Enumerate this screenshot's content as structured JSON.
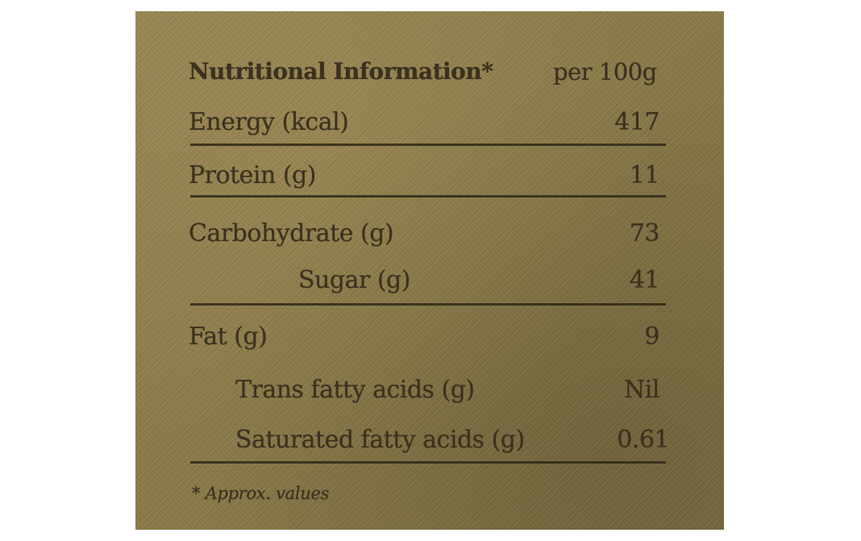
{
  "table": {
    "title": "Nutritional Information*",
    "unit": "per 100g",
    "rows": [
      {
        "name": "Energy (kcal)",
        "value": "417"
      },
      {
        "name": "Protein (g)",
        "value": "11"
      },
      {
        "name": "Carbohydrate (g)",
        "value": "73"
      },
      {
        "name": "Sugar (g)",
        "value": "41"
      },
      {
        "name": "Fat (g)",
        "value": "9"
      },
      {
        "name": "Trans fatty acids (g)",
        "value": "Nil"
      },
      {
        "name": "Saturated fatty acids (g)",
        "value": "0.61"
      }
    ],
    "footnote": "* Approx. values"
  },
  "colors": {
    "card": "#8a7a49",
    "ink": "#3a3120"
  }
}
